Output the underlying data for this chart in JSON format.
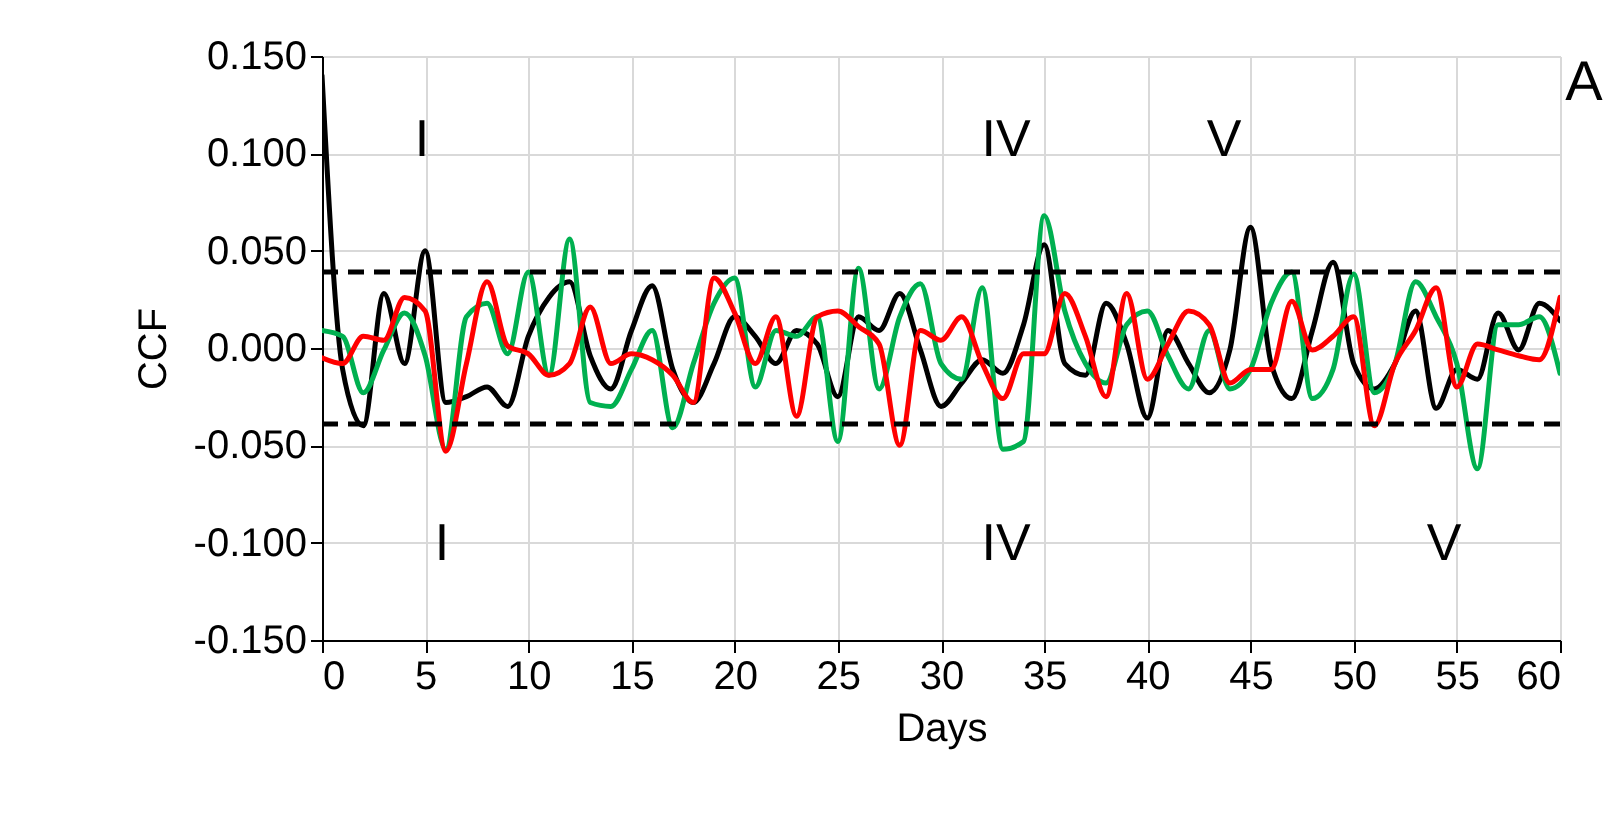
{
  "chart_data": {
    "type": "line",
    "xlabel": "Days",
    "ylabel": "CCF",
    "x": [
      0,
      1,
      2,
      3,
      4,
      5,
      6,
      7,
      8,
      9,
      10,
      11,
      12,
      13,
      14,
      15,
      16,
      17,
      18,
      19,
      20,
      21,
      22,
      23,
      24,
      25,
      26,
      27,
      28,
      29,
      30,
      31,
      32,
      33,
      34,
      35,
      36,
      37,
      38,
      39,
      40,
      41,
      42,
      43,
      44,
      45,
      46,
      47,
      48,
      49,
      50,
      51,
      52,
      53,
      54,
      55,
      56,
      57,
      58,
      59,
      60
    ],
    "series": [
      {
        "color": "#000000",
        "values": [
          0.14,
          -0.011,
          -0.04,
          0.028,
          -0.008,
          0.05,
          -0.028,
          -0.025,
          -0.02,
          -0.03,
          0.006,
          0.026,
          0.034,
          -0.004,
          -0.021,
          0.009,
          0.032,
          -0.011,
          -0.028,
          -0.008,
          0.016,
          0.006,
          -0.008,
          0.009,
          0.002,
          -0.025,
          0.016,
          0.009,
          0.028,
          -0.001,
          -0.03,
          -0.018,
          -0.006,
          -0.013,
          0.012,
          0.053,
          -0.008,
          -0.014,
          0.023,
          0.002,
          -0.036,
          0.009,
          -0.008,
          -0.023,
          -0.001,
          0.062,
          -0.008,
          -0.026,
          0.009,
          0.044,
          -0.008,
          -0.021,
          -0.008,
          0.019,
          -0.031,
          -0.011,
          -0.016,
          0.018,
          -0.001,
          0.023,
          0.014
        ]
      },
      {
        "color": "#00b050",
        "values": [
          0.009,
          0.006,
          -0.023,
          -0.001,
          0.018,
          -0.004,
          -0.052,
          0.016,
          0.023,
          -0.003,
          0.039,
          -0.014,
          0.056,
          -0.028,
          -0.03,
          -0.011,
          0.009,
          -0.041,
          -0.008,
          0.023,
          0.036,
          -0.02,
          0.009,
          0.006,
          0.016,
          -0.048,
          0.041,
          -0.021,
          0.016,
          0.033,
          -0.008,
          -0.016,
          0.031,
          -0.052,
          -0.048,
          0.068,
          0.019,
          -0.008,
          -0.018,
          0.012,
          0.019,
          -0.004,
          -0.021,
          0.009,
          -0.021,
          -0.011,
          0.023,
          0.039,
          -0.026,
          -0.011,
          0.038,
          -0.023,
          -0.008,
          0.034,
          0.016,
          -0.008,
          -0.062,
          0.012,
          0.012,
          0.016,
          -0.013
        ]
      },
      {
        "color": "#ff0000",
        "values": [
          -0.005,
          -0.008,
          0.006,
          0.004,
          0.026,
          0.019,
          -0.053,
          -0.008,
          0.034,
          0.001,
          -0.003,
          -0.014,
          -0.008,
          0.021,
          -0.008,
          -0.003,
          -0.006,
          -0.014,
          -0.028,
          0.036,
          0.018,
          -0.008,
          0.016,
          -0.035,
          0.016,
          0.019,
          0.011,
          0.002,
          -0.05,
          0.009,
          0.004,
          0.016,
          -0.008,
          -0.026,
          -0.003,
          -0.003,
          0.028,
          0.006,
          -0.025,
          0.028,
          -0.016,
          0.002,
          0.019,
          0.012,
          -0.018,
          -0.011,
          -0.011,
          0.024,
          -0.001,
          0.006,
          0.016,
          -0.04,
          -0.008,
          0.009,
          0.031,
          -0.02,
          0.002,
          -0.001,
          -0.004,
          -0.006,
          0.026
        ]
      }
    ],
    "xlim": [
      0,
      60
    ],
    "xticks": [
      0,
      5,
      10,
      15,
      20,
      25,
      30,
      35,
      40,
      45,
      50,
      55,
      60
    ],
    "ylim": [
      -0.15,
      0.15
    ],
    "yticks": [
      {
        "value": -0.15,
        "label": "-0.150"
      },
      {
        "value": -0.1,
        "label": "-0.100"
      },
      {
        "value": -0.05,
        "label": "-0.050"
      },
      {
        "value": 0,
        "label": "0.000"
      },
      {
        "value": 0.05,
        "label": "0.050"
      },
      {
        "value": 0.1,
        "label": "0.100"
      },
      {
        "value": 0.15,
        "label": "0.150"
      }
    ],
    "ref_lines": [
      {
        "axis": "y",
        "value": 0.039,
        "color": "#000000",
        "line_style": "dashed"
      },
      {
        "axis": "y",
        "value": -0.039,
        "color": "#000000",
        "line_style": "dashed"
      }
    ],
    "annotations": [
      "I",
      "IV",
      "V",
      "I",
      "IV",
      "V",
      "A"
    ],
    "grid": true,
    "marker": "none",
    "line_style": "solid"
  }
}
